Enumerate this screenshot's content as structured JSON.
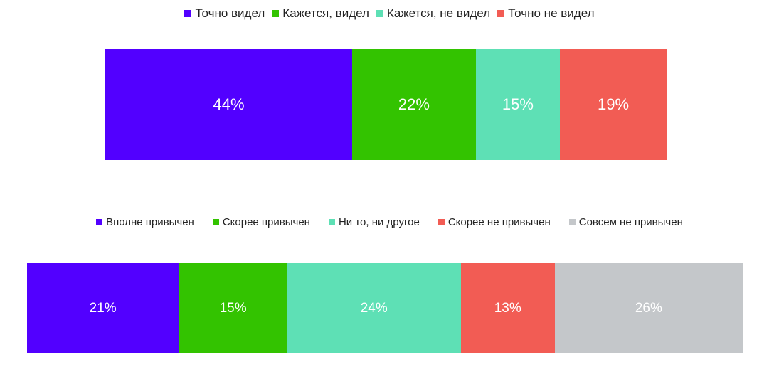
{
  "chart_data": [
    {
      "type": "bar",
      "orientation": "horizontal-stacked-100",
      "title": "",
      "legend_position": "top",
      "series": [
        {
          "name": "Точно видел",
          "value": 44,
          "label": "44%",
          "color": "#5200ff"
        },
        {
          "name": "Кажется, видел",
          "value": 22,
          "label": "22%",
          "color": "#33c300"
        },
        {
          "name": "Кажется, не видел",
          "value": 15,
          "label": "15%",
          "color": "#5ee0b5"
        },
        {
          "name": "Точно не видел",
          "value": 19,
          "label": "19%",
          "color": "#f25c54"
        }
      ]
    },
    {
      "type": "bar",
      "orientation": "horizontal-stacked-100",
      "title": "",
      "legend_position": "top",
      "series": [
        {
          "name": "Вполне привычен",
          "value": 21,
          "label": "21%",
          "color": "#5200ff"
        },
        {
          "name": "Скорее привычен",
          "value": 15,
          "label": "15%",
          "color": "#33c300"
        },
        {
          "name": "Ни то, ни другое",
          "value": 24,
          "label": "24%",
          "color": "#5ee0b5"
        },
        {
          "name": "Скорее не привычен",
          "value": 13,
          "label": "13%",
          "color": "#f25c54"
        },
        {
          "name": "Совсем не привычен",
          "value": 26,
          "label": "26%",
          "color": "#c4c7ca"
        }
      ]
    }
  ]
}
